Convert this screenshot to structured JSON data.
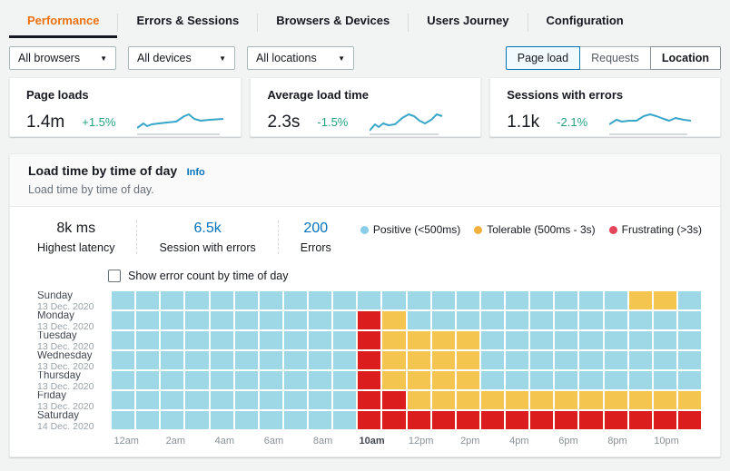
{
  "tabs": {
    "items": [
      {
        "label": "Performance",
        "active": true
      },
      {
        "label": "Errors & Sessions",
        "active": false
      },
      {
        "label": "Browsers & Devices",
        "active": false
      },
      {
        "label": "Users Journey",
        "active": false
      },
      {
        "label": "Configuration",
        "active": false
      }
    ]
  },
  "filters": {
    "dropdowns": [
      {
        "value": "All browsers"
      },
      {
        "value": "All devices"
      },
      {
        "value": "All locations"
      }
    ],
    "segments": [
      {
        "label": "Page load",
        "selected": true,
        "bold": false
      },
      {
        "label": "Requests",
        "selected": false,
        "bold": false
      },
      {
        "label": "Location",
        "selected": false,
        "bold": true
      }
    ]
  },
  "metric_cards": [
    {
      "title": "Page loads",
      "value": "1.4m",
      "delta": "+1.5%",
      "spark": [
        [
          0,
          21
        ],
        [
          7,
          16
        ],
        [
          11,
          19
        ],
        [
          16,
          17
        ],
        [
          24,
          16
        ],
        [
          33,
          15
        ],
        [
          43,
          14
        ],
        [
          52,
          8
        ],
        [
          57,
          6
        ],
        [
          63,
          11
        ],
        [
          70,
          13
        ],
        [
          80,
          12
        ],
        [
          95,
          11
        ]
      ]
    },
    {
      "title": "Average load time",
      "value": "2.3s",
      "delta": "-1.5%",
      "spark": [
        [
          0,
          24
        ],
        [
          6,
          17
        ],
        [
          10,
          20
        ],
        [
          15,
          16
        ],
        [
          21,
          18
        ],
        [
          28,
          17
        ],
        [
          36,
          10
        ],
        [
          43,
          6
        ],
        [
          49,
          8
        ],
        [
          55,
          13
        ],
        [
          61,
          16
        ],
        [
          68,
          12
        ],
        [
          74,
          6
        ],
        [
          80,
          8
        ]
      ]
    },
    {
      "title": "Sessions with errors",
      "value": "1.1k",
      "delta": "-2.1%",
      "spark": [
        [
          0,
          17
        ],
        [
          8,
          12
        ],
        [
          14,
          14
        ],
        [
          22,
          13
        ],
        [
          30,
          13
        ],
        [
          38,
          8
        ],
        [
          45,
          6
        ],
        [
          52,
          8
        ],
        [
          60,
          11
        ],
        [
          66,
          13
        ],
        [
          73,
          10
        ],
        [
          82,
          12
        ],
        [
          90,
          13
        ]
      ]
    }
  ],
  "colors": {
    "delta_green": "#24a184",
    "sparkline_blue": "#38a6c8",
    "accent_orange": "#ec7211",
    "link_blue": "#0073bb"
  },
  "panel": {
    "title": "Load time by time of day",
    "info_label": "Info",
    "subtitle": "Load time by time of day.",
    "stats": [
      {
        "value": "8k ms",
        "label": "Highest latency",
        "link": false
      },
      {
        "value": "6.5k",
        "label": "Session with errors",
        "link": true
      },
      {
        "value": "200",
        "label": "Errors",
        "link": true
      }
    ],
    "legend": [
      {
        "label": "Positive (<500ms)",
        "color": "#88cde8"
      },
      {
        "label": "Tolerable (500ms - 3s)",
        "color": "#f0b13f"
      },
      {
        "label": "Frustrating (>3s)",
        "color": "#e4455a"
      }
    ],
    "checkbox_label": "Show error count by time of day",
    "checkbox_checked": false
  },
  "chart_data": {
    "type": "heatmap",
    "x_labels": [
      "12am",
      "2am",
      "4am",
      "6am",
      "8am",
      "10am",
      "12pm",
      "2pm",
      "4pm",
      "6pm",
      "8pm",
      "10pm"
    ],
    "emphasized_x_label": "10am",
    "cell_legend": {
      "B": "Positive (<500ms)",
      "Y": "Tolerable (500ms - 3s)",
      "R": "Frustrating (>3s)"
    },
    "cell_colors": {
      "B": "#9ed7e6",
      "Y": "#f4c64f",
      "R": "#dc1d1d"
    },
    "rows": [
      {
        "day": "Sunday",
        "date": "13 Dec. 2020",
        "cells": "BBBBBBBBBBBBBBBBBBBBBYYB"
      },
      {
        "day": "Monday",
        "date": "13 Dec. 2020",
        "cells": "BBBBBBBBBBRYBBBBBBBBBBBB"
      },
      {
        "day": "Tuesday",
        "date": "13 Dec. 2020",
        "cells": "BBBBBBBBBBRYYYYBBBBBBBBB"
      },
      {
        "day": "Wednesday",
        "date": "13 Dec. 2020",
        "cells": "BBBBBBBBBBRYYYYBBBBBBBBB"
      },
      {
        "day": "Thursday",
        "date": "13 Dec. 2020",
        "cells": "BBBBBBBBBBRYYYYBBBBBBBBB"
      },
      {
        "day": "Friday",
        "date": "13 Dec. 2020",
        "cells": "BBBBBBBBBBRRYYYYYYYYYYYY"
      },
      {
        "day": "Saturday",
        "date": "14 Dec. 2020",
        "cells": "BBBBBBBBBBRRRRRRRRRRRRRR"
      }
    ]
  }
}
